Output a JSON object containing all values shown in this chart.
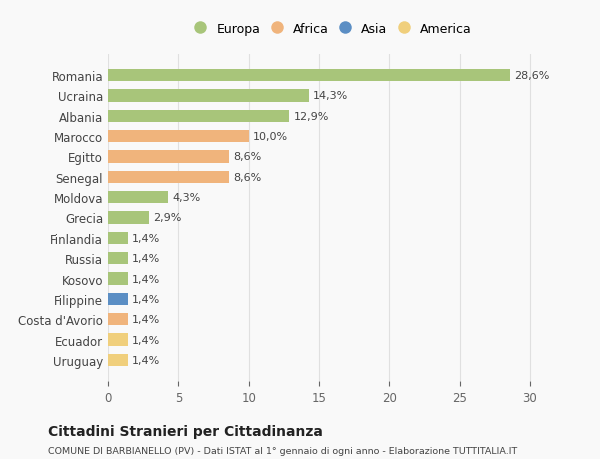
{
  "countries": [
    "Romania",
    "Ucraina",
    "Albania",
    "Marocco",
    "Egitto",
    "Senegal",
    "Moldova",
    "Grecia",
    "Finlandia",
    "Russia",
    "Kosovo",
    "Filippine",
    "Costa d'Avorio",
    "Ecuador",
    "Uruguay"
  ],
  "values": [
    28.6,
    14.3,
    12.9,
    10.0,
    8.6,
    8.6,
    4.3,
    2.9,
    1.4,
    1.4,
    1.4,
    1.4,
    1.4,
    1.4,
    1.4
  ],
  "labels": [
    "28,6%",
    "14,3%",
    "12,9%",
    "10,0%",
    "8,6%",
    "8,6%",
    "4,3%",
    "2,9%",
    "1,4%",
    "1,4%",
    "1,4%",
    "1,4%",
    "1,4%",
    "1,4%",
    "1,4%"
  ],
  "continents": [
    "Europa",
    "Europa",
    "Europa",
    "Africa",
    "Africa",
    "Africa",
    "Europa",
    "Europa",
    "Europa",
    "Europa",
    "Europa",
    "Asia",
    "Africa",
    "America",
    "America"
  ],
  "colors": {
    "Europa": "#a8c57a",
    "Africa": "#f0b47c",
    "Asia": "#5b8ec4",
    "America": "#f0cf7c"
  },
  "legend_order": [
    "Europa",
    "Africa",
    "Asia",
    "America"
  ],
  "title": "Cittadini Stranieri per Cittadinanza",
  "subtitle": "COMUNE DI BARBIANELLO (PV) - Dati ISTAT al 1° gennaio di ogni anno - Elaborazione TUTTITALIA.IT",
  "xlim": [
    0,
    32
  ],
  "xticks": [
    0,
    5,
    10,
    15,
    20,
    25,
    30
  ],
  "background_color": "#f9f9f9",
  "grid_color": "#e0e0e0"
}
